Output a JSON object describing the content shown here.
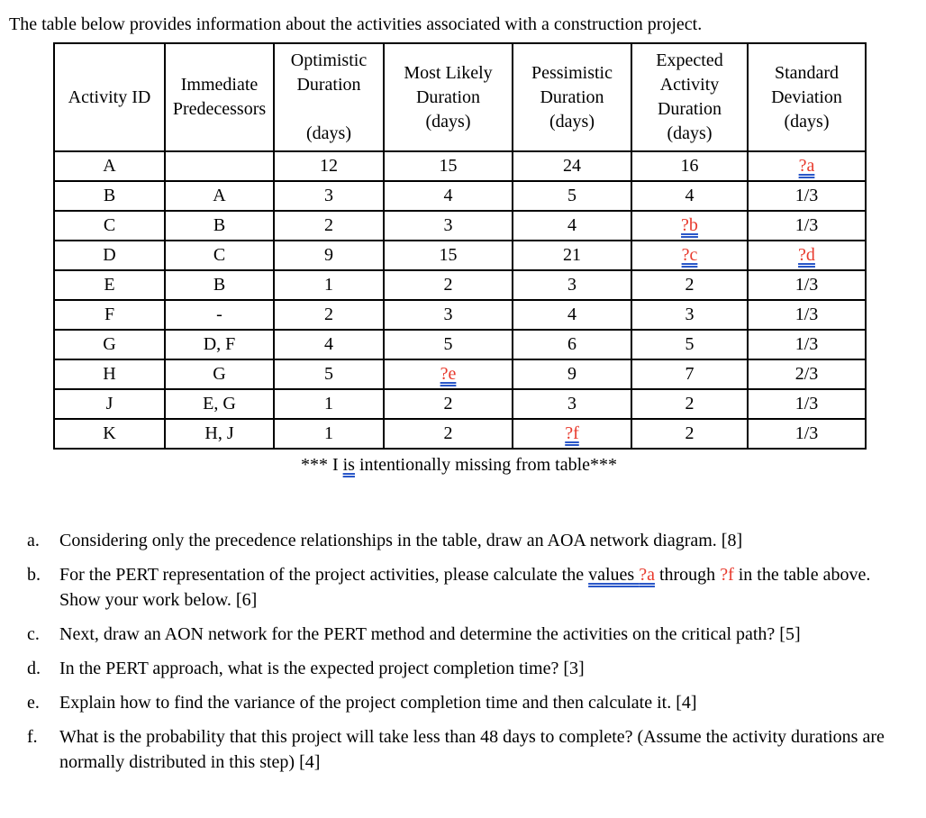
{
  "title": "The table below provides information about the activities associated with a construction project.",
  "colors": {
    "missing_red": "#e8392c",
    "grammar_blue": "#2a57c8"
  },
  "table": {
    "headers": [
      "Activity ID",
      "Immediate\nPredecessors",
      "Optimistic\nDuration\n\n(days)",
      "Most Likely\nDuration\n(days)",
      "Pessimistic\nDuration\n(days)",
      "Expected\nActivity\nDuration\n(days)",
      "Standard\nDeviation\n(days)"
    ],
    "rows": [
      {
        "cells": [
          {
            "t": "A"
          },
          {
            "t": ""
          },
          {
            "t": "12"
          },
          {
            "t": "15"
          },
          {
            "t": "24"
          },
          {
            "t": "16"
          },
          {
            "t": "?a",
            "missing": true
          }
        ]
      },
      {
        "cells": [
          {
            "t": "B"
          },
          {
            "t": "A"
          },
          {
            "t": "3"
          },
          {
            "t": "4"
          },
          {
            "t": "5"
          },
          {
            "t": "4"
          },
          {
            "t": "1/3"
          }
        ]
      },
      {
        "cells": [
          {
            "t": "C"
          },
          {
            "t": "B"
          },
          {
            "t": "2"
          },
          {
            "t": "3"
          },
          {
            "t": "4"
          },
          {
            "t": "?b",
            "missing": true
          },
          {
            "t": "1/3"
          }
        ]
      },
      {
        "cells": [
          {
            "t": "D"
          },
          {
            "t": "C"
          },
          {
            "t": "9"
          },
          {
            "t": "15"
          },
          {
            "t": "21"
          },
          {
            "t": "?c",
            "missing": true
          },
          {
            "t": "?d",
            "missing": true
          }
        ]
      },
      {
        "cells": [
          {
            "t": "E"
          },
          {
            "t": "B"
          },
          {
            "t": "1"
          },
          {
            "t": "2"
          },
          {
            "t": "3"
          },
          {
            "t": "2"
          },
          {
            "t": "1/3"
          }
        ]
      },
      {
        "cells": [
          {
            "t": "F"
          },
          {
            "t": "-"
          },
          {
            "t": "2"
          },
          {
            "t": "3"
          },
          {
            "t": "4"
          },
          {
            "t": "3"
          },
          {
            "t": "1/3"
          }
        ]
      },
      {
        "cells": [
          {
            "t": "G"
          },
          {
            "t": "D, F"
          },
          {
            "t": "4"
          },
          {
            "t": "5"
          },
          {
            "t": "6"
          },
          {
            "t": "5"
          },
          {
            "t": "1/3"
          }
        ]
      },
      {
        "cells": [
          {
            "t": "H"
          },
          {
            "t": "G"
          },
          {
            "t": "5"
          },
          {
            "t": "?e",
            "missing": true
          },
          {
            "t": "9"
          },
          {
            "t": "7"
          },
          {
            "t": "2/3"
          }
        ]
      },
      {
        "cells": [
          {
            "t": "J"
          },
          {
            "t": "E, G"
          },
          {
            "t": "1"
          },
          {
            "t": "2"
          },
          {
            "t": "3"
          },
          {
            "t": "2"
          },
          {
            "t": "1/3"
          }
        ]
      },
      {
        "cells": [
          {
            "t": "K"
          },
          {
            "t": "H, J"
          },
          {
            "t": "1"
          },
          {
            "t": "2"
          },
          {
            "t": "?f",
            "missing": true
          },
          {
            "t": "2"
          },
          {
            "t": "1/3"
          }
        ]
      }
    ]
  },
  "footnote": {
    "prefix": "*** I ",
    "underlined": "is",
    "suffix": " intentionally missing from table***"
  },
  "questions": [
    {
      "letter": "a.",
      "segments": [
        {
          "t": "Considering only the precedence relationships in the table, draw an AOA network diagram. [8]"
        }
      ]
    },
    {
      "letter": "b.",
      "segments": [
        {
          "t": "For the PERT representation of the project activities, please calculate the "
        },
        {
          "t": "values ",
          "underline": true
        },
        {
          "t": "?a",
          "underline": true,
          "red": true
        },
        {
          "t": " through "
        },
        {
          "t": "?f",
          "red": true
        },
        {
          "t": " in the table above. Show your work below. [6]"
        }
      ]
    },
    {
      "letter": "c.",
      "segments": [
        {
          "t": "Next, draw an AON network for the PERT method and determine the activities on the critical path? [5]"
        }
      ]
    },
    {
      "letter": "d.",
      "segments": [
        {
          "t": "In the PERT approach, what is the expected project completion time? [3]"
        }
      ]
    },
    {
      "letter": "e.",
      "segments": [
        {
          "t": "Explain how to find the variance of the project completion time and then calculate it. [4]"
        }
      ]
    },
    {
      "letter": "f.",
      "segments": [
        {
          "t": "What is the probability that this project will take less than 48 days to complete? (Assume the activity durations are normally distributed in this step) [4]"
        }
      ]
    }
  ]
}
